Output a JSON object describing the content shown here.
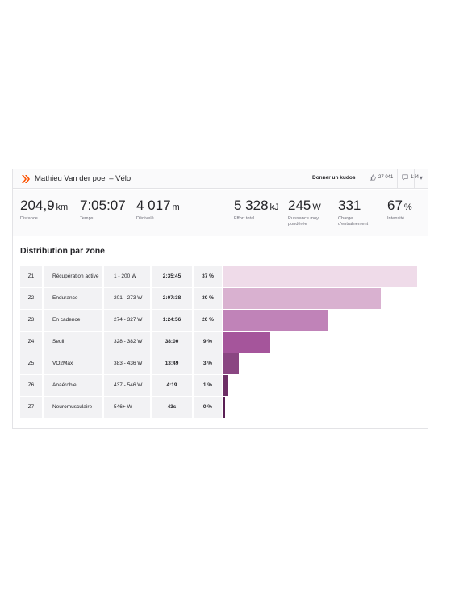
{
  "header": {
    "athlete_title": "Mathieu Van der poel – Vélo",
    "kudos_label": "Donner un kudos",
    "kudos_count": "27 041",
    "comments_count": "124"
  },
  "stats": [
    {
      "value": "204,9",
      "unit": "km",
      "label": "Distance"
    },
    {
      "value": "7:05:07",
      "unit": "",
      "label": "Temps"
    },
    {
      "value": "4 017",
      "unit": "m",
      "label": "Dénivelé"
    },
    {
      "value": "5 328",
      "unit": "kJ",
      "label": "Effort total"
    },
    {
      "value": "245",
      "unit": "W",
      "label": "Puissance moy. pondérée"
    },
    {
      "value": "331",
      "unit": "",
      "label": "Charge d'entraînement"
    },
    {
      "value": "67",
      "unit": "%",
      "label": "Intensité"
    }
  ],
  "zones": {
    "title": "Distribution par zone",
    "rows": [
      {
        "zone": "Z1",
        "name": "Récupération active",
        "range": "1 - 200 W",
        "time": "2:35:45",
        "percent": "37 %",
        "share": 37,
        "color": "#efdbe9"
      },
      {
        "zone": "Z2",
        "name": "Endurance",
        "range": "201 - 273 W",
        "time": "2:07:38",
        "percent": "30 %",
        "share": 30,
        "color": "#d9b1d0"
      },
      {
        "zone": "Z3",
        "name": "En cadence",
        "range": "274 - 327 W",
        "time": "1:24:56",
        "percent": "20 %",
        "share": 20,
        "color": "#c083b8"
      },
      {
        "zone": "Z4",
        "name": "Seuil",
        "range": "328 - 382 W",
        "time": "38:00",
        "percent": "9 %",
        "share": 9,
        "color": "#a5559b"
      },
      {
        "zone": "Z5",
        "name": "VO2Max",
        "range": "383 - 436 W",
        "time": "13:49",
        "percent": "3 %",
        "share": 3,
        "color": "#8a4682"
      },
      {
        "zone": "Z6",
        "name": "Anaérobie",
        "range": "437 - 546 W",
        "time": "4:19",
        "percent": "1 %",
        "share": 1,
        "color": "#6d2f66"
      },
      {
        "zone": "Z7",
        "name": "Neuromusculaire",
        "range": "546+ W",
        "time": "43s",
        "percent": "0 %",
        "share": 0.2,
        "color": "#5a1f55"
      }
    ]
  }
}
